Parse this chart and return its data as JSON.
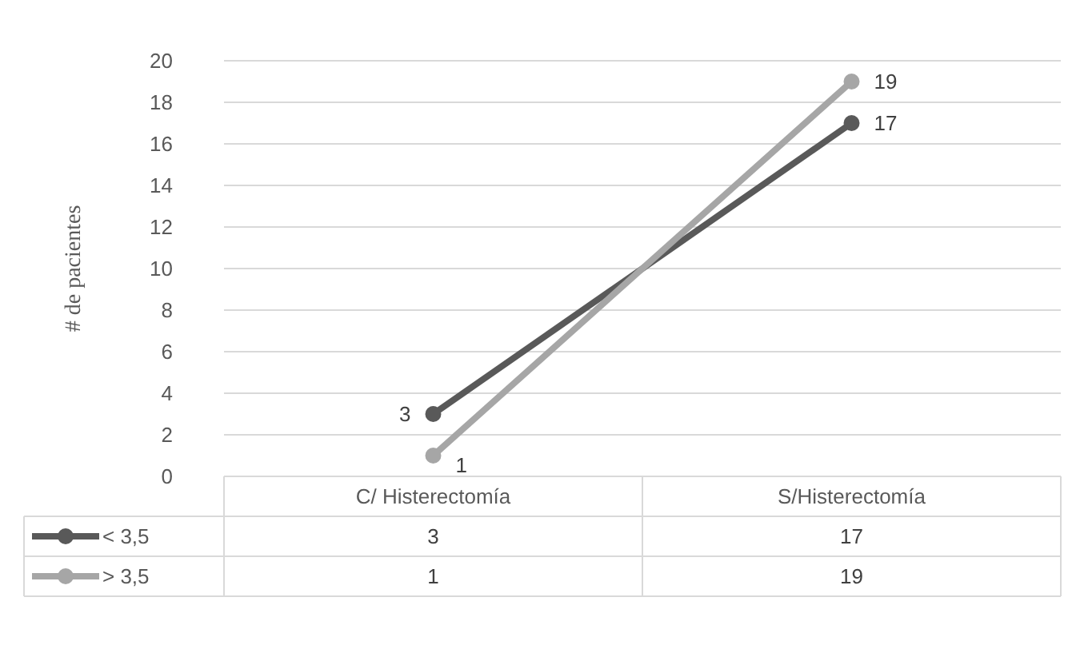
{
  "chart_data": {
    "type": "line",
    "ylabel": "# de pacientes",
    "categories": [
      "C/ Histerectomía",
      "S/Histerectomía"
    ],
    "series": [
      {
        "name": "< 3,5",
        "color": "#595959",
        "values": [
          3,
          17
        ]
      },
      {
        "name": "> 3,5",
        "color": "#a6a6a6",
        "values": [
          1,
          19
        ]
      }
    ],
    "annotations": [
      {
        "text": "3",
        "x": "C/ Histerectomía",
        "y": 3
      },
      {
        "text": "17",
        "x": "S/Histerectomía",
        "y": 17
      },
      {
        "text": "1",
        "x": "C/ Histerectomía",
        "y": 1
      },
      {
        "text": "19",
        "x": "S/Histerectomía",
        "y": 19
      }
    ],
    "ylim": [
      0,
      20
    ],
    "yticks": [
      0,
      2,
      4,
      6,
      8,
      10,
      12,
      14,
      16,
      18,
      20
    ],
    "grid": "y",
    "marker": "circle",
    "line_style": "solid",
    "data_labels": true,
    "legend": "bottom"
  }
}
